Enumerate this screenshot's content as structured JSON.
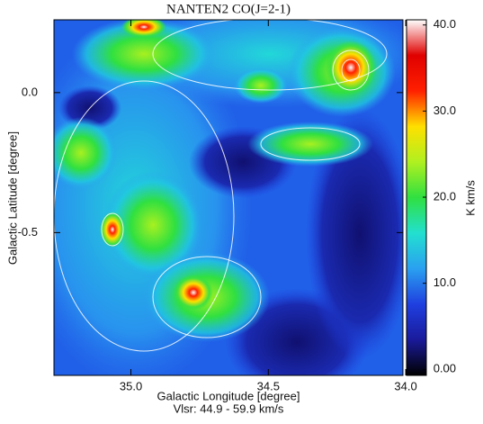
{
  "chart_data": {
    "type": "image",
    "title": "NANTEN2 CO(J=2-1)",
    "x_label": "Galactic Longitude [degree]",
    "x_label_2": "Vlsr: 44.9 - 59.9 km/s",
    "y_label": "Galactic Latitude [degree]",
    "xlim": [
      35.28,
      34.01
    ],
    "xticks": [
      {
        "value": 35,
        "label": "35.0"
      },
      {
        "value": 34.5,
        "label": "34.5"
      },
      {
        "value": 34,
        "label": "34.0"
      }
    ],
    "ylim": [
      -1.01,
      0.26
    ],
    "yticks": [
      {
        "value": 0,
        "label": "0.0"
      },
      {
        "value": -0.5,
        "label": "-0.5"
      }
    ],
    "colorbar": {
      "label": "K km/s",
      "lim": [
        -0.7,
        40.6
      ],
      "ticks": [
        {
          "value": 0,
          "label": "0.00"
        },
        {
          "value": 10,
          "label": "10.0"
        },
        {
          "value": 20,
          "label": "20.0"
        },
        {
          "value": 30,
          "label": "30.0"
        },
        {
          "value": 40,
          "label": "40.0"
        }
      ],
      "colors": [
        "#000000",
        "#1a1a9a",
        "#1f3fe0",
        "#2aa0f0",
        "#22e0d0",
        "#30e040",
        "#b0f020",
        "#ffe000",
        "#ff2000",
        "#e00000",
        "#ffffff"
      ]
    }
  }
}
